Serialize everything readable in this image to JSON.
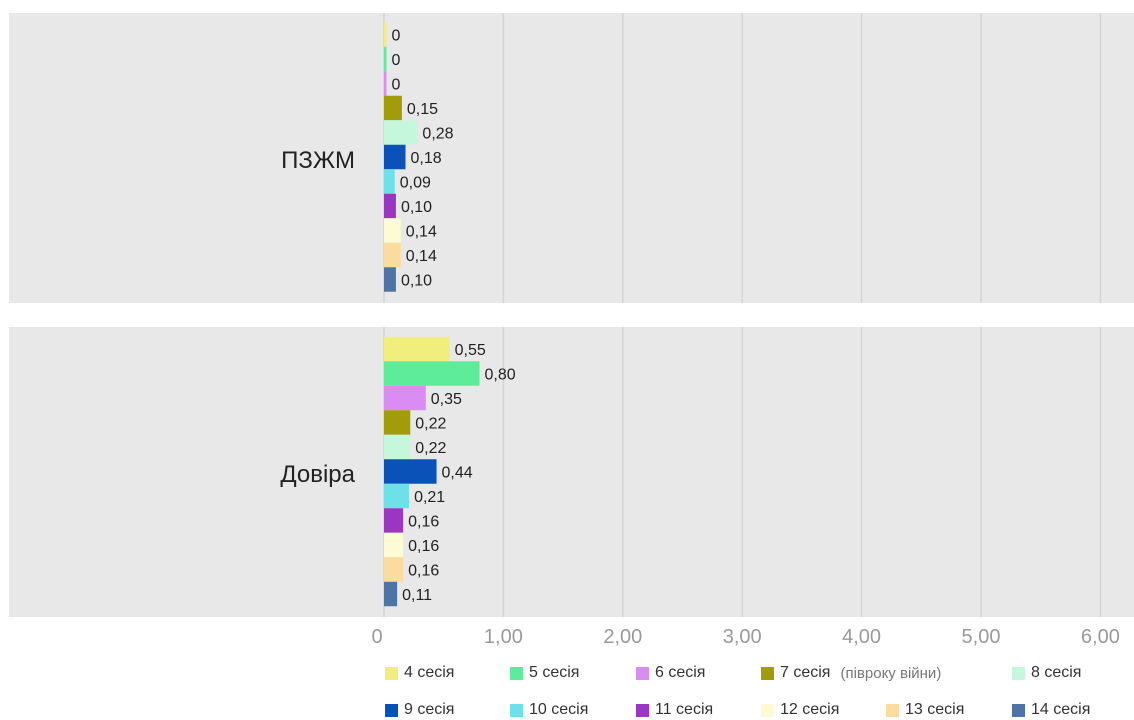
{
  "chart_data": {
    "type": "bar",
    "orientation": "horizontal",
    "categories": [
      "ПЗЖМ",
      "Довіра"
    ],
    "series": [
      {
        "name": "4 сесія",
        "values": [
          0,
          0.55
        ],
        "labels": [
          "0",
          "0,55"
        ]
      },
      {
        "name": "5 сесія",
        "values": [
          0,
          0.8
        ],
        "labels": [
          "0",
          "0,80"
        ]
      },
      {
        "name": "6 сесія",
        "values": [
          0,
          0.35
        ],
        "labels": [
          "0",
          "0,35"
        ]
      },
      {
        "name": "7 сесія",
        "note": "(півроку війни)",
        "values": [
          0.15,
          0.22
        ],
        "labels": [
          "0,15",
          "0,22"
        ]
      },
      {
        "name": "8 сесія",
        "values": [
          0.28,
          0.22
        ],
        "labels": [
          "0,28",
          "0,22"
        ]
      },
      {
        "name": "9 сесія",
        "values": [
          0.18,
          0.44
        ],
        "labels": [
          "0,18",
          "0,44"
        ]
      },
      {
        "name": "10 сесія",
        "values": [
          0.09,
          0.21
        ],
        "labels": [
          "0,09",
          "0,21"
        ]
      },
      {
        "name": "11 сесія",
        "values": [
          0.1,
          0.16
        ],
        "labels": [
          "0,10",
          "0,16"
        ]
      },
      {
        "name": "12 сесія",
        "values": [
          0.14,
          0.16
        ],
        "labels": [
          "0,14",
          "0,16"
        ]
      },
      {
        "name": "13 сесія",
        "values": [
          0.14,
          0.16
        ],
        "labels": [
          "0,14",
          "0,16"
        ]
      },
      {
        "name": "14 сесія",
        "values": [
          0.1,
          0.11
        ],
        "labels": [
          "0,10",
          "0,11"
        ]
      }
    ],
    "colors": [
      "#f2ee7e",
      "#5ded9a",
      "#d98cf2",
      "#a39c0a",
      "#c5f7dc",
      "#0a52b8",
      "#6ee0e8",
      "#9b36c0",
      "#fdfbd3",
      "#fcdc9e",
      "#4e74a6"
    ],
    "xlim": [
      0,
      6
    ],
    "xticks": [
      "0",
      "1,00",
      "2,00",
      "3,00",
      "4,00",
      "5,00",
      "6,00"
    ],
    "grid": true,
    "legend_position": "bottom",
    "title": "",
    "xlabel": "",
    "ylabel": ""
  }
}
